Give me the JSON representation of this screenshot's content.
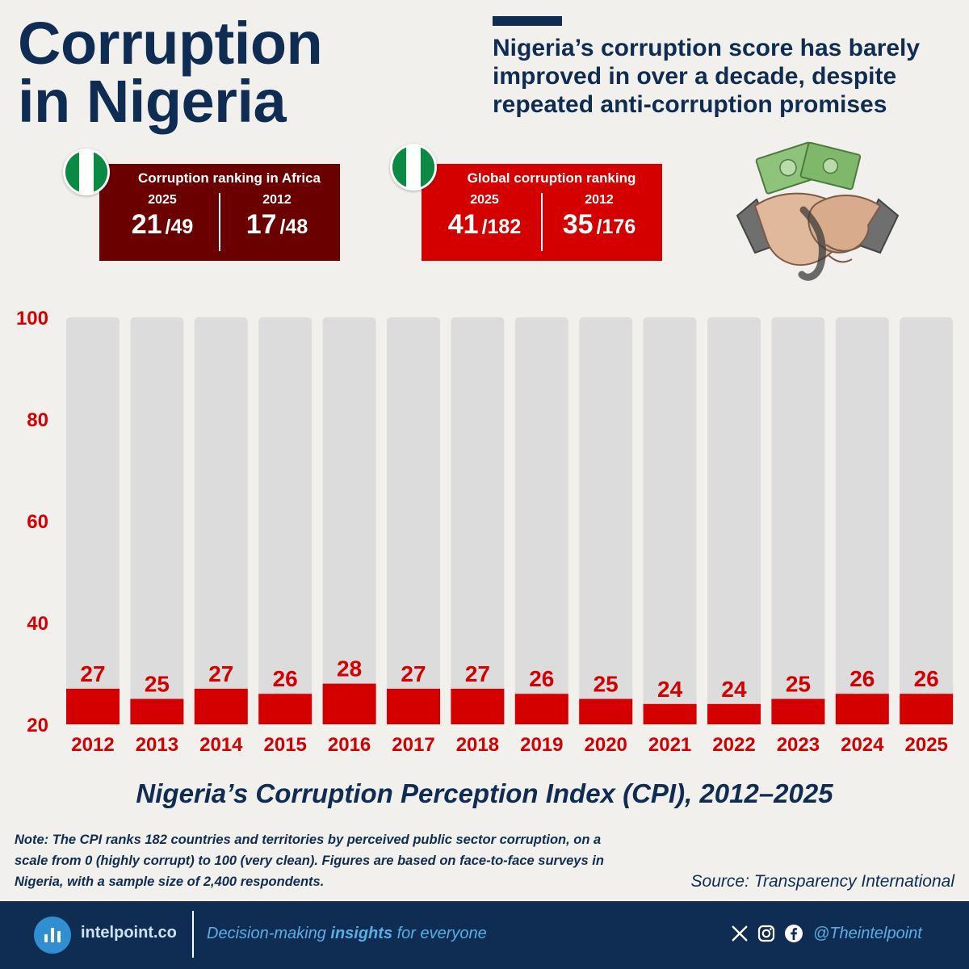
{
  "header": {
    "title_line1": "Corruption",
    "title_line2": "in Nigeria",
    "subtitle": "Nigeria’s corruption score has barely improved in over a decade, despite repeated anti-corruption promises"
  },
  "africa_ranking": {
    "title": "Corruption ranking in Africa",
    "left": {
      "year": "2025",
      "rank": "21",
      "total": "/49"
    },
    "right": {
      "year": "2012",
      "rank": "17",
      "total": "/48"
    },
    "color": "#6b0000"
  },
  "global_ranking": {
    "title": "Global corruption ranking",
    "left": {
      "year": "2025",
      "rank": "41",
      "total": "/182"
    },
    "right": {
      "year": "2012",
      "rank": "35",
      "total": "/176"
    },
    "color": "#d40000"
  },
  "chart_data": {
    "type": "bar",
    "title": "Nigeria’s Corruption Perception Index (CPI), 2012–2025",
    "categories": [
      "2012",
      "2013",
      "2014",
      "2015",
      "2016",
      "2017",
      "2018",
      "2019",
      "2020",
      "2021",
      "2022",
      "2023",
      "2024",
      "2025"
    ],
    "values": [
      27,
      25,
      27,
      26,
      28,
      27,
      27,
      26,
      25,
      24,
      24,
      25,
      26,
      26
    ],
    "ylim": [
      20,
      100
    ],
    "yticks": [
      20,
      40,
      60,
      80,
      100
    ],
    "bar_color": "#d40000",
    "background_bar_color": "#dcdcdc",
    "label_color": "#d40000"
  },
  "note": "Note: The CPI ranks 182 countries and territories by perceived public sector corruption, on a scale from 0 (highly corrupt) to 100 (very clean). Figures are based on face-to-face surveys in Nigeria, with a sample size of 2,400 respondents.",
  "source": "Source: Transparency International",
  "footer": {
    "site": "intelpoint.co",
    "tagline_pre": "Decision-making ",
    "tagline_bold": "insights",
    "tagline_post": " for everyone",
    "handle": "@Theintelpoint",
    "icons": [
      "x-icon",
      "instagram-icon",
      "facebook-icon"
    ]
  }
}
